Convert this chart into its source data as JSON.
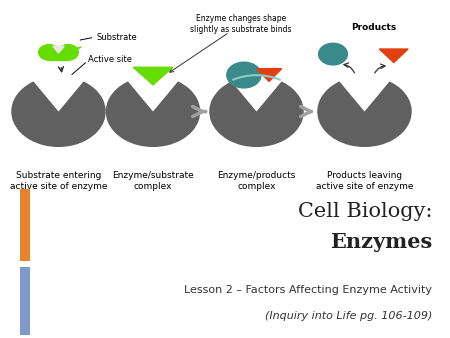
{
  "bg_color": "#ffffff",
  "top_bg": "#e8e8e8",
  "mid_bg": "#faf8f5",
  "bot_bg": "#efefef",
  "enzyme_color": "#606060",
  "substrate_color": "#66dd00",
  "product1_color": "#3a8a8a",
  "product2_color": "#e04010",
  "arrow_color": "#a0a0a0",
  "title_line1": "Cell Biology:",
  "title_line2": "Enzymes",
  "subtitle_line1": "Lesson 2 – Factors Affecting Enzyme Activity",
  "subtitle_line2": "(Inquiry into Life pg. 106-109)",
  "label1": "Substrate entering\nactive site of enzyme",
  "label2": "Enzyme/substrate\ncomplex",
  "label3": "Enzyme/products\ncomplex",
  "label4": "Products leaving\nactive site of enzyme",
  "annot_substrate": "Substrate",
  "annot_active": "Active site",
  "annot_enzyme_change": "Enzyme changes shape\nslightly as substrate binds",
  "annot_products": "Products",
  "orange_bar_color": "#e8832a",
  "blue_bar_color": "#8099cc",
  "title_fontsize": 15,
  "subtitle_fontsize": 8,
  "label_fontsize": 6.5
}
